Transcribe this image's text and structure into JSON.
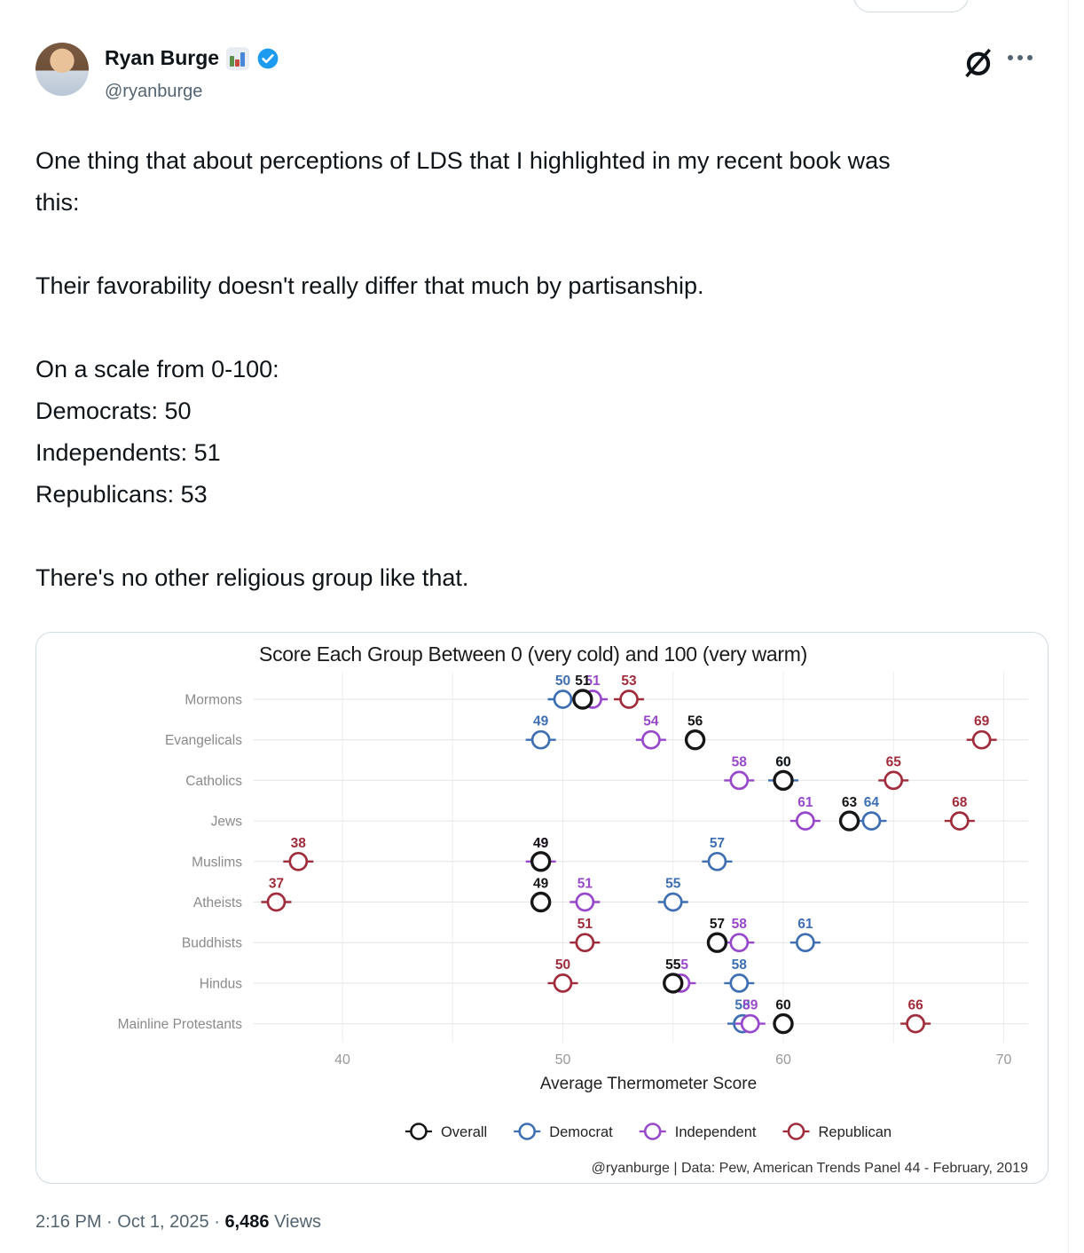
{
  "tweet": {
    "author_name": "Ryan Burge",
    "verified": true,
    "handle": "@ryanburge",
    "paragraphs": [
      "One thing that about perceptions of LDS that I highlighted in my recent book was this:",
      "Their favorability doesn't really differ that much by partisanship.",
      "On a scale from 0-100:\nDemocrats: 50\nIndependents: 51\nRepublicans: 53",
      "There's no other religious group like that."
    ],
    "timestamp": "2:16 PM · Oct 1, 2025 ·",
    "views_count": "6,486",
    "views_label": "Views",
    "accent_color": "#1d9bf0",
    "icons": [
      "bar-chart-emoji",
      "verified-badge",
      "grok-icon",
      "more-ellipsis-icon"
    ]
  },
  "chart_data": {
    "type": "scatter",
    "title": "Score Each Group Between 0 (very cold) and 100 (very warm)",
    "xlabel": "Average Thermometer Score",
    "xlim": [
      36,
      71
    ],
    "xticks": [
      40,
      50,
      60,
      70
    ],
    "gridlines_x": [
      40,
      45,
      50,
      55,
      60,
      65,
      70
    ],
    "grid": true,
    "legend_position": "bottom",
    "caption": "@ryanburge | Data: Pew, American Trends Panel 44 - February, 2019",
    "categories": [
      "Mormons",
      "Evangelicals",
      "Catholics",
      "Jews",
      "Muslims",
      "Atheists",
      "Buddhists",
      "Hindus",
      "Mainline Protestants"
    ],
    "series": [
      {
        "name": "Overall",
        "color": "#161616",
        "values": [
          51,
          56,
          60,
          63,
          49,
          49,
          57,
          55,
          60
        ]
      },
      {
        "name": "Democrat",
        "color": "#3e6fb3",
        "values": [
          50,
          49,
          60,
          64,
          57,
          55,
          61,
          58,
          58
        ]
      },
      {
        "name": "Independent",
        "color": "#9848cb",
        "values": [
          51,
          54,
          58,
          61,
          49,
          51,
          58,
          55,
          59
        ]
      },
      {
        "name": "Republican",
        "color": "#a02c3c",
        "values": [
          53,
          69,
          65,
          68,
          38,
          37,
          51,
          50,
          66
        ]
      }
    ],
    "plot_offsets": {
      "Mormons": {
        "Overall": 50.9,
        "Independent": 51.35
      },
      "Hindus": {
        "Independent": 55.35
      },
      "Mainline Protestants": {
        "Democrat": 58.15,
        "Independent": 58.5
      }
    }
  }
}
